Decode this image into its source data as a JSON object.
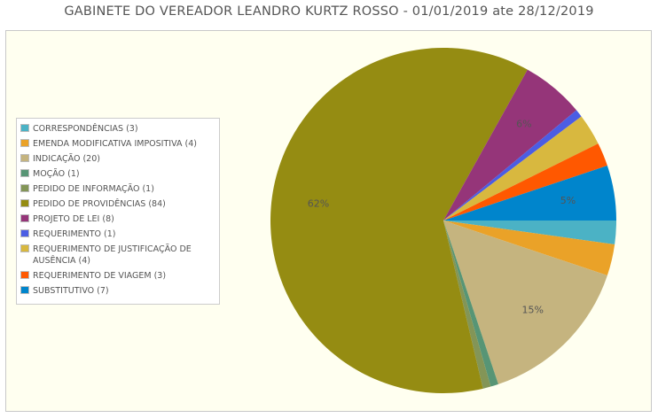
{
  "chart_data": {
    "type": "pie",
    "title": "GABINETE DO VEREADOR LEANDRO KURTZ ROSSO - 01/01/2019 ate 28/12/2019",
    "legend_position": "left",
    "slices": [
      {
        "label": "CORRESPONDÊNCIAS (3)",
        "value": 3,
        "color": "#4bb2c5",
        "pct_label": ""
      },
      {
        "label": "EMENDA MODIFICATIVA IMPOSITIVA (4)",
        "value": 4,
        "color": "#eaa228",
        "pct_label": ""
      },
      {
        "label": "INDICAÇÃO (20)",
        "value": 20,
        "color": "#c5b47f",
        "pct_label": "15%"
      },
      {
        "label": "MOÇÃO (1)",
        "value": 1,
        "color": "#579575",
        "pct_label": ""
      },
      {
        "label": "PEDIDO DE INFORMAÇÃO (1)",
        "value": 1,
        "color": "#839557",
        "pct_label": ""
      },
      {
        "label": "PEDIDO DE PROVIDÊNCIAS (84)",
        "value": 84,
        "color": "#958c12",
        "pct_label": "62%"
      },
      {
        "label": "PROJETO DE LEI (8)",
        "value": 8,
        "color": "#953579",
        "pct_label": "6%"
      },
      {
        "label": "REQUERIMENTO (1)",
        "value": 1,
        "color": "#4b5de4",
        "pct_label": ""
      },
      {
        "label": "REQUERIMENTO DE JUSTIFICAÇÃO DE AUSÊNCIA (4)",
        "value": 4,
        "color": "#d8b83f",
        "pct_label": ""
      },
      {
        "label": "REQUERIMENTO DE VIAGEM (3)",
        "value": 3,
        "color": "#ff5800",
        "pct_label": ""
      },
      {
        "label": "SUBSTITUTIVO (7)",
        "value": 7,
        "color": "#0085cc",
        "pct_label": "5%"
      }
    ]
  }
}
